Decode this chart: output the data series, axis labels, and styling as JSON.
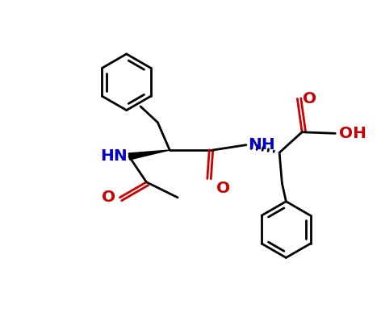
{
  "bg_color": "#ffffff",
  "bond_color": "#000000",
  "nitrogen_color": "#0000cc",
  "oxygen_color": "#cc0000",
  "lw": 2.0,
  "fig_width": 4.72,
  "fig_height": 3.88,
  "dpi": 100,
  "xlim": [
    -1.0,
    9.5
  ],
  "ylim": [
    -0.5,
    7.5
  ]
}
